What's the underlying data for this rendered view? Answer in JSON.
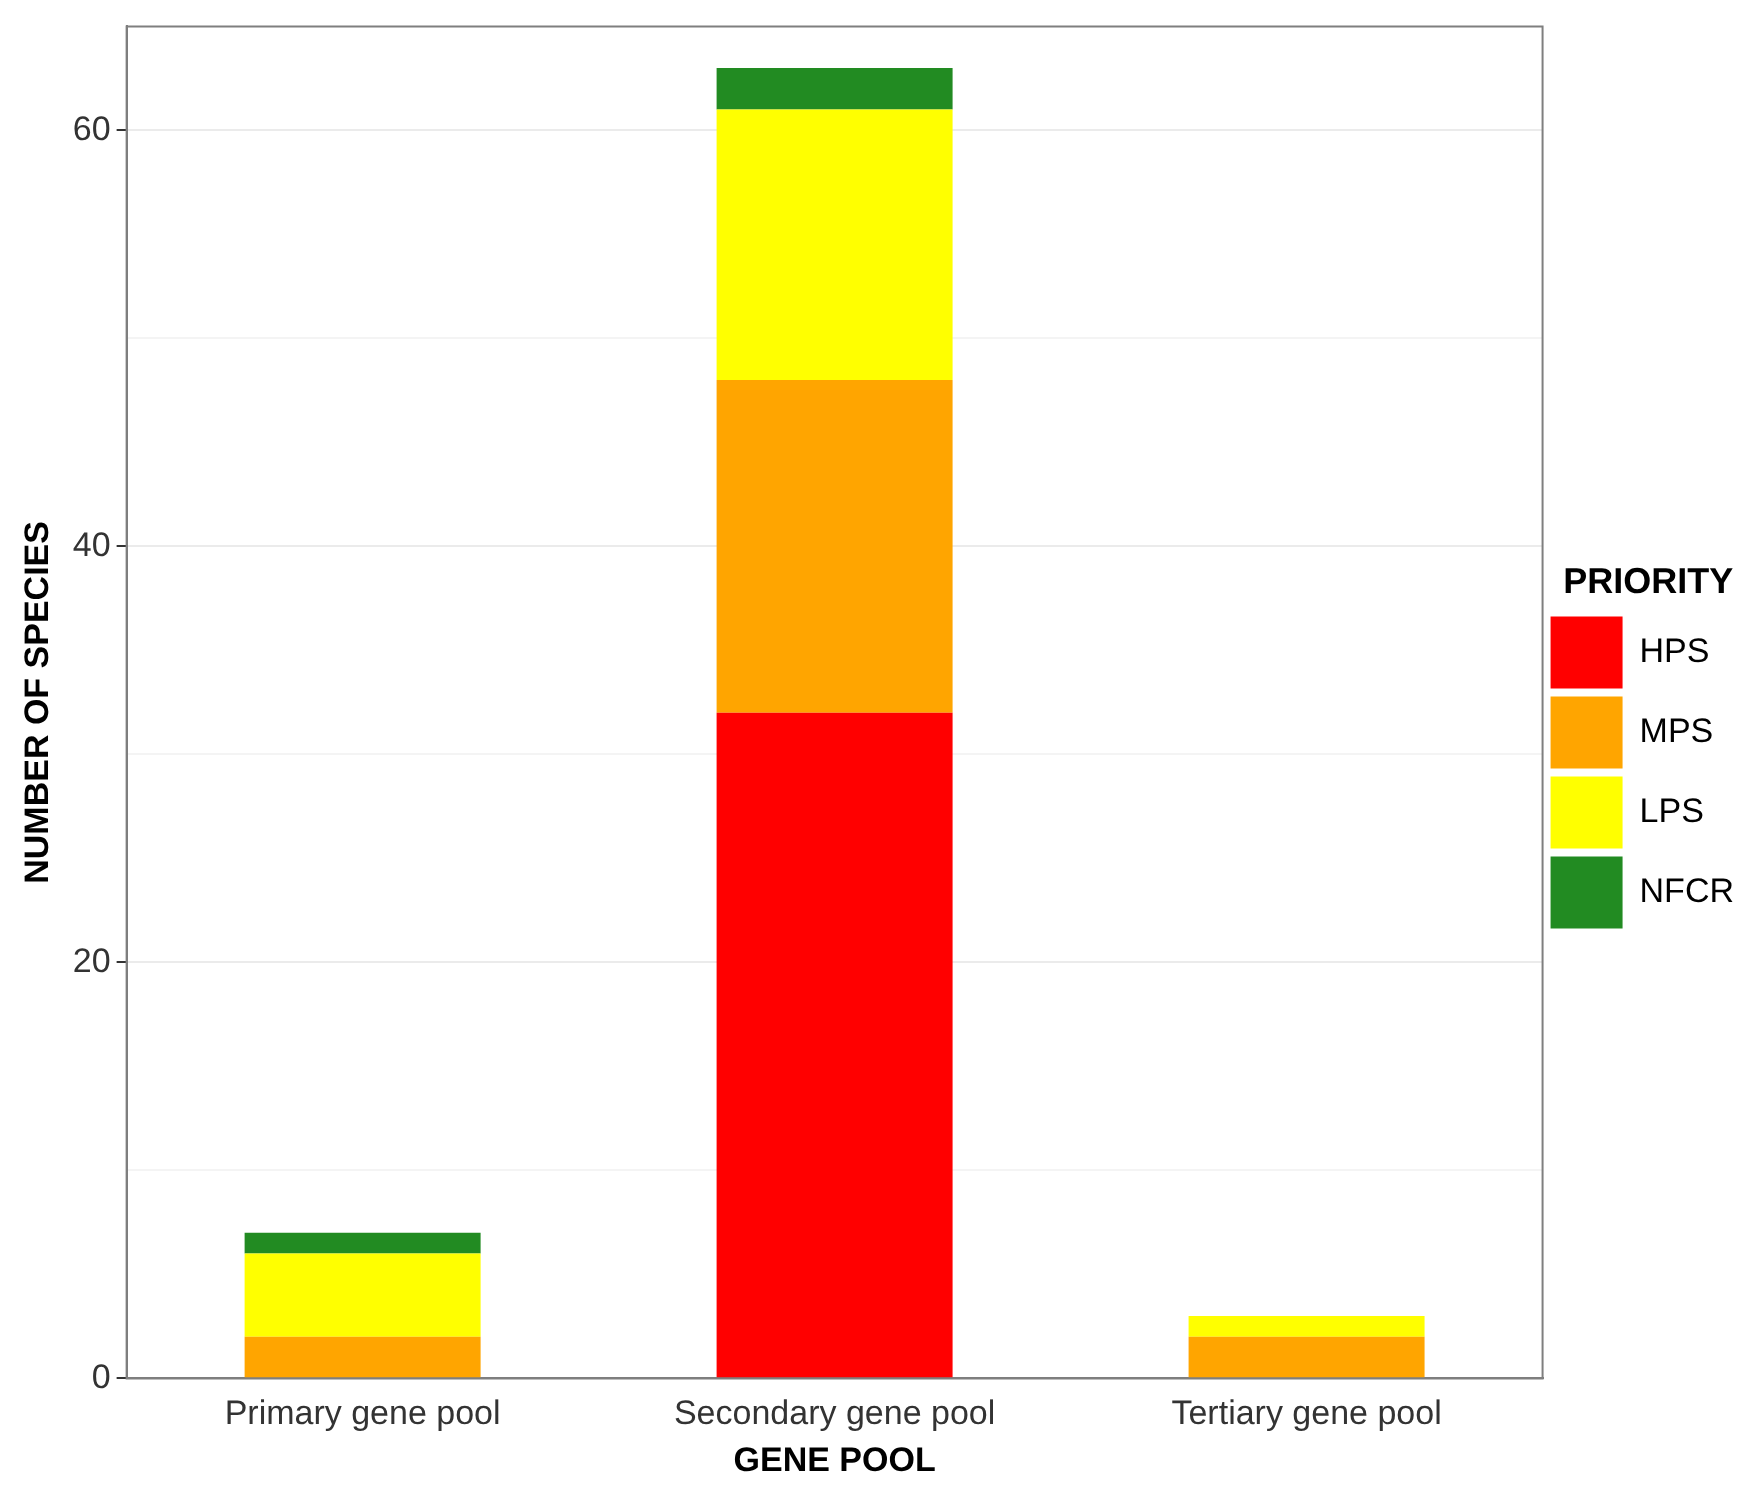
{
  "chart_data": {
    "type": "bar",
    "stacked": true,
    "xlabel": "GENE POOL",
    "ylabel": "NUMBER OF SPECIES",
    "legend_title": "PRIORITY",
    "legend": "right",
    "categories": [
      "Primary gene pool",
      "Secondary gene pool",
      "Tertiary gene pool"
    ],
    "series": [
      {
        "name": "HPS",
        "color": "#ff0000",
        "values": [
          0,
          32,
          0
        ]
      },
      {
        "name": "MPS",
        "color": "#ffa500",
        "values": [
          2,
          16,
          2
        ]
      },
      {
        "name": "LPS",
        "color": "#ffff00",
        "values": [
          4,
          13,
          1
        ]
      },
      {
        "name": "NFCR",
        "color": "#228b22",
        "values": [
          1,
          2,
          0
        ]
      }
    ],
    "ylim": [
      0,
      65
    ],
    "yticks": [
      0,
      {
        "value": 10,
        "label": null
      },
      20,
      {
        "value": 30,
        "label": null
      },
      40,
      {
        "value": 50,
        "label": null
      },
      60
    ],
    "grid": "y"
  }
}
